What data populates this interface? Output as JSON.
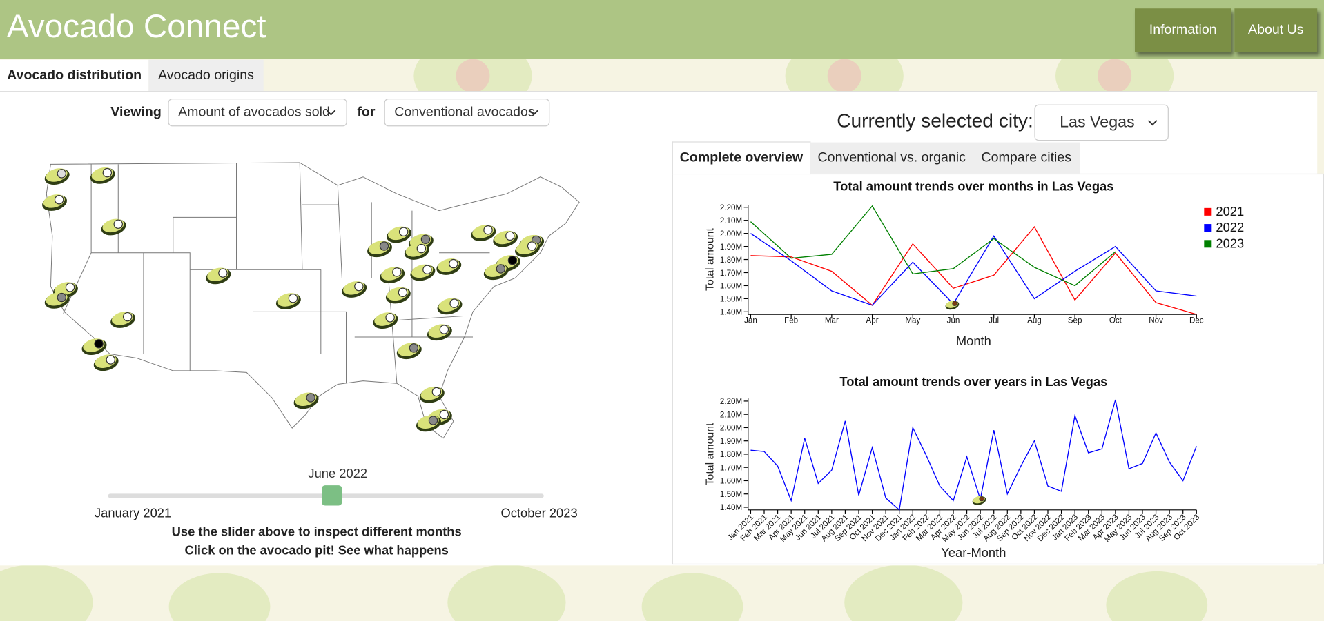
{
  "header": {
    "title": "Avocado Connect",
    "buttons": [
      "Information",
      "About Us"
    ]
  },
  "tabs": [
    "Avocado distribution",
    "Avocado origins"
  ],
  "controls": {
    "viewing_label": "Viewing",
    "metric": "Amount of avocados sold",
    "for_label": "for",
    "variety": "Conventional avocados"
  },
  "slider": {
    "current": "June 2022",
    "start": "January 2021",
    "end": "October 2023"
  },
  "instructions": [
    "Use the slider above to inspect different months",
    "Click on the avocado pit! See what happens"
  ],
  "city": {
    "label": "Currently selected city:",
    "value": "Las Vegas"
  },
  "subtabs": [
    "Complete overview",
    "Conventional vs. organic",
    "Compare cities"
  ],
  "chart_data": [
    {
      "type": "line",
      "title": "Total amount trends over months in Las Vegas",
      "x_label": "Month",
      "y_label": "Total amount",
      "categories": [
        "Jan",
        "Feb",
        "Mar",
        "Apr",
        "May",
        "Jun",
        "Jul",
        "Aug",
        "Sep",
        "Oct",
        "Nov",
        "Dec"
      ],
      "series": [
        {
          "name": "2021",
          "color": "#ff0000",
          "values": [
            1830000,
            1820000,
            1710000,
            1450000,
            1920000,
            1580000,
            1680000,
            2050000,
            1490000,
            1850000,
            1470000,
            1380000
          ]
        },
        {
          "name": "2022",
          "color": "#0000ff",
          "values": [
            2000000,
            1790000,
            1560000,
            1450000,
            1780000,
            1460000,
            1980000,
            1500000,
            1710000,
            1900000,
            1560000,
            1520000
          ]
        },
        {
          "name": "2023",
          "color": "#008000",
          "values": [
            2090000,
            1810000,
            1840000,
            2210000,
            1690000,
            1730000,
            1960000,
            1740000,
            1600000,
            1860000,
            null,
            null
          ]
        }
      ],
      "ylim": [
        1380000,
        2220000
      ],
      "yticks": [
        {
          "value": 1400000,
          "label": "1.40M"
        },
        {
          "value": 1500000,
          "label": "1.50M"
        },
        {
          "value": 1600000,
          "label": "1.60M"
        },
        {
          "value": 1700000,
          "label": "1.70M"
        },
        {
          "value": 1800000,
          "label": "1.80M"
        },
        {
          "value": 1900000,
          "label": "1.90M"
        },
        {
          "value": 2000000,
          "label": "2.00M"
        },
        {
          "value": 2100000,
          "label": "2.10M"
        },
        {
          "value": 2200000,
          "label": "2.20M"
        }
      ],
      "legend": "right"
    },
    {
      "type": "line",
      "title": "Total amount trends over years in Las Vegas",
      "x_label": "Year-Month",
      "y_label": "Total amount",
      "categories": [
        "Jan 2021",
        "Feb 2021",
        "Mar 2021",
        "Apr 2021",
        "May 2021",
        "Jun 2021",
        "Jul 2021",
        "Aug 2021",
        "Sep 2021",
        "Oct 2021",
        "Nov 2021",
        "Dec 2021",
        "Jan 2022",
        "Feb 2022",
        "Mar 2022",
        "Apr 2022",
        "May 2022",
        "Jun 2022",
        "Jul 2022",
        "Aug 2022",
        "Sep 2022",
        "Oct 2022",
        "Nov 2022",
        "Dec 2022",
        "Jan 2023",
        "Feb 2023",
        "Mar 2023",
        "Apr 2023",
        "May 2023",
        "Jun 2023",
        "Jul 2023",
        "Aug 2023",
        "Sep 2023",
        "Oct 2023"
      ],
      "color": "#0000ff",
      "values": [
        1830000,
        1820000,
        1710000,
        1450000,
        1920000,
        1580000,
        1680000,
        2050000,
        1490000,
        1850000,
        1470000,
        1380000,
        2000000,
        1790000,
        1560000,
        1450000,
        1780000,
        1460000,
        1980000,
        1500000,
        1710000,
        1900000,
        1560000,
        1520000,
        2090000,
        1810000,
        1840000,
        2210000,
        1690000,
        1730000,
        1960000,
        1740000,
        1600000,
        1860000
      ],
      "ylim": [
        1380000,
        2220000
      ],
      "yticks": [
        {
          "value": 1400000,
          "label": "1.40M"
        },
        {
          "value": 1500000,
          "label": "1.50M"
        },
        {
          "value": 1600000,
          "label": "1.60M"
        },
        {
          "value": 1700000,
          "label": "1.70M"
        },
        {
          "value": 1800000,
          "label": "1.80M"
        },
        {
          "value": 1900000,
          "label": "1.90M"
        },
        {
          "value": 2000000,
          "label": "2.00M"
        },
        {
          "value": 2100000,
          "label": "2.10M"
        },
        {
          "value": 2200000,
          "label": "2.20M"
        }
      ]
    }
  ]
}
